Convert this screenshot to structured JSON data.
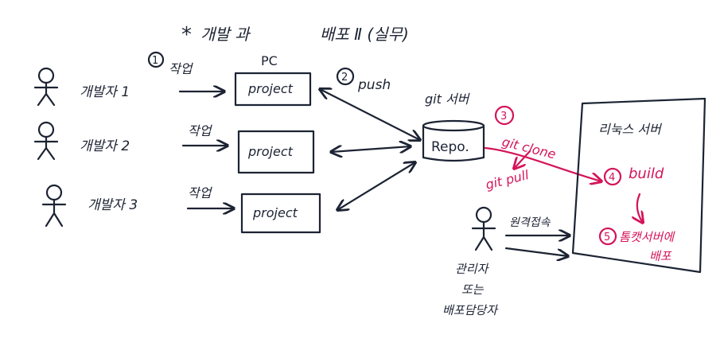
{
  "colors": {
    "ink": "#1c2333",
    "red": "#d4145a",
    "background": "#ffffff"
  },
  "header": {
    "star": "*",
    "left": "개발 과",
    "right": "배포 Ⅱ (실무)"
  },
  "pc_label": "PC",
  "developers": [
    {
      "name": "개발자 1",
      "step_num": "1",
      "step_label": "작업",
      "project": "project"
    },
    {
      "name": "개발자 2",
      "step_num": "",
      "step_label": "작업",
      "project": "project"
    },
    {
      "name": "개발자 3",
      "step_num": "",
      "step_label": "작업",
      "project": "project"
    }
  ],
  "push": {
    "num": "2",
    "label": "push"
  },
  "git_server": {
    "label": "git 서버",
    "repo": "Repo."
  },
  "clone": {
    "num": "3",
    "label": "git clone"
  },
  "pull": {
    "label": "git pull"
  },
  "linux_server": {
    "label": "리눅스 서버"
  },
  "build": {
    "num": "4",
    "label": "build"
  },
  "deploy": {
    "num": "5",
    "line1": "톰캣서버에",
    "line2": "배포"
  },
  "admin": {
    "access": "원격접속",
    "role_line1": "관리자",
    "role_line2": "또는",
    "role_line3": "배포담당자"
  }
}
